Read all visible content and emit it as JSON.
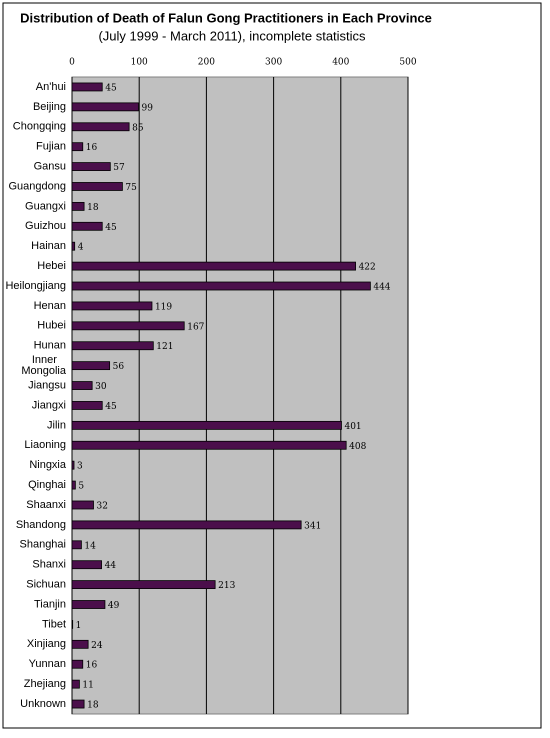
{
  "chart_data": {
    "type": "bar",
    "orientation": "horizontal",
    "title": "Distribution of Death of Falun Gong Practitioners in Each Province",
    "subtitle": "(July 1999 - March 2011), incomplete statistics",
    "categories": [
      "An'hui",
      "Beijing",
      "Chongqing",
      "Fujian",
      "Gansu",
      "Guangdong",
      "Guangxi",
      "Guizhou",
      "Hainan",
      "Hebei",
      "Heilongjiang",
      "Henan",
      "Hubei",
      "Hunan",
      "Inner Mongolia",
      "Jiangsu",
      "Jiangxi",
      "Jilin",
      "Liaoning",
      "Ningxia",
      "Qinghai",
      "Shaanxi",
      "Shandong",
      "Shanghai",
      "Shanxi",
      "Sichuan",
      "Tianjin",
      "Tibet",
      "Xinjiang",
      "Yunnan",
      "Zhejiang",
      "Unknown"
    ],
    "values": [
      45,
      99,
      85,
      16,
      57,
      75,
      18,
      45,
      4,
      422,
      444,
      119,
      167,
      121,
      56,
      30,
      45,
      401,
      408,
      3,
      5,
      32,
      341,
      14,
      44,
      213,
      49,
      1,
      24,
      16,
      11,
      18
    ],
    "color": "#4b0f4b",
    "xlim": [
      0,
      500
    ],
    "xticks": [
      0,
      100,
      200,
      300,
      400,
      500
    ],
    "grid": true
  }
}
